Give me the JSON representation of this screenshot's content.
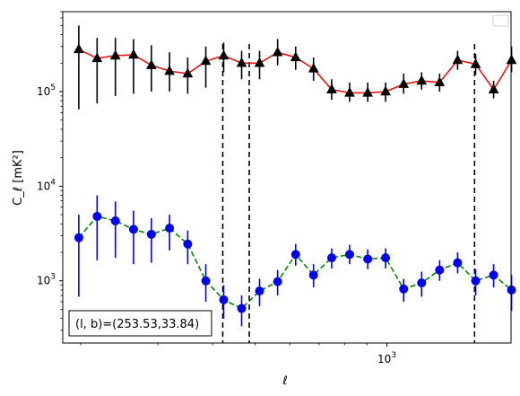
{
  "chart_data": {
    "type": "scatter",
    "title": "",
    "xlabel": "ℓ",
    "ylabel": "C_ℓ [mK²]",
    "xscale": "log",
    "yscale": "log",
    "xlim": [
      182,
      1920
    ],
    "ylim": [
      220,
      700000
    ],
    "grid": false,
    "legend": {
      "placement": "top-right",
      "entries": []
    },
    "x_ticks": [
      {
        "value": 1000,
        "base": "10",
        "exp": "3"
      }
    ],
    "y_ticks": [
      {
        "value": 1000,
        "base": "10",
        "exp": "3"
      },
      {
        "value": 10000,
        "base": "10",
        "exp": "4"
      },
      {
        "value": 100000,
        "base": "10",
        "exp": "5"
      }
    ],
    "vlines": [
      422,
      485,
      1585
    ],
    "annotation": "(l, b)=(253.53,33.84)",
    "series": [
      {
        "marker": "triangle",
        "line_style": "solid",
        "marker_color": "#000000",
        "line_color": "#ee1111",
        "points": [
          {
            "x": 198,
            "y": 280000,
            "lo": 65000,
            "hi": 500000
          },
          {
            "x": 218,
            "y": 225000,
            "lo": 75000,
            "hi": 370000
          },
          {
            "x": 240,
            "y": 240000,
            "lo": 90000,
            "hi": 370000
          },
          {
            "x": 264,
            "y": 245000,
            "lo": 95000,
            "hi": 360000
          },
          {
            "x": 290,
            "y": 190000,
            "lo": 100000,
            "hi": 310000
          },
          {
            "x": 319,
            "y": 165000,
            "lo": 100000,
            "hi": 260000
          },
          {
            "x": 351,
            "y": 155000,
            "lo": 95000,
            "hi": 230000
          },
          {
            "x": 386,
            "y": 210000,
            "lo": 110000,
            "hi": 300000
          },
          {
            "x": 424,
            "y": 240000,
            "lo": 160000,
            "hi": 330000
          },
          {
            "x": 466,
            "y": 200000,
            "lo": 135000,
            "hi": 270000
          },
          {
            "x": 512,
            "y": 200000,
            "lo": 135000,
            "hi": 270000
          },
          {
            "x": 563,
            "y": 260000,
            "lo": 190000,
            "hi": 360000
          },
          {
            "x": 619,
            "y": 230000,
            "lo": 170000,
            "hi": 300000
          },
          {
            "x": 680,
            "y": 175000,
            "lo": 130000,
            "hi": 230000
          },
          {
            "x": 748,
            "y": 105000,
            "lo": 82000,
            "hi": 135000
          },
          {
            "x": 822,
            "y": 97000,
            "lo": 78000,
            "hi": 125000
          },
          {
            "x": 904,
            "y": 97000,
            "lo": 78000,
            "hi": 125000
          },
          {
            "x": 993,
            "y": 100000,
            "lo": 78000,
            "hi": 125000
          },
          {
            "x": 1092,
            "y": 120000,
            "lo": 95000,
            "hi": 155000
          },
          {
            "x": 1200,
            "y": 130000,
            "lo": 105000,
            "hi": 160000
          },
          {
            "x": 1319,
            "y": 125000,
            "lo": 100000,
            "hi": 155000
          },
          {
            "x": 1450,
            "y": 215000,
            "lo": 170000,
            "hi": 270000
          },
          {
            "x": 1594,
            "y": 195000,
            "lo": 150000,
            "hi": 250000
          },
          {
            "x": 1752,
            "y": 105000,
            "lo": 85000,
            "hi": 130000
          },
          {
            "x": 1925,
            "y": 215000,
            "lo": 160000,
            "hi": 300000
          }
        ]
      },
      {
        "marker": "circle",
        "line_style": "dashed",
        "marker_color": "#0000ee",
        "line_color": "#008800",
        "points": [
          {
            "x": 198,
            "y": 2850,
            "lo": 680,
            "hi": 5000
          },
          {
            "x": 218,
            "y": 4800,
            "lo": 1650,
            "hi": 8000
          },
          {
            "x": 240,
            "y": 4300,
            "lo": 1750,
            "hi": 6900
          },
          {
            "x": 264,
            "y": 3500,
            "lo": 1500,
            "hi": 5500
          },
          {
            "x": 290,
            "y": 3100,
            "lo": 1550,
            "hi": 4600
          },
          {
            "x": 319,
            "y": 3600,
            "lo": 2100,
            "hi": 5000
          },
          {
            "x": 351,
            "y": 2450,
            "lo": 1500,
            "hi": 3400
          },
          {
            "x": 386,
            "y": 1000,
            "lo": 600,
            "hi": 1500
          },
          {
            "x": 424,
            "y": 630,
            "lo": 400,
            "hi": 900
          },
          {
            "x": 466,
            "y": 510,
            "lo": 330,
            "hi": 700
          },
          {
            "x": 512,
            "y": 780,
            "lo": 540,
            "hi": 1050
          },
          {
            "x": 563,
            "y": 980,
            "lo": 700,
            "hi": 1300
          },
          {
            "x": 619,
            "y": 1900,
            "lo": 1450,
            "hi": 2450
          },
          {
            "x": 680,
            "y": 1150,
            "lo": 850,
            "hi": 1500
          },
          {
            "x": 748,
            "y": 1750,
            "lo": 1350,
            "hi": 2200
          },
          {
            "x": 822,
            "y": 1900,
            "lo": 1500,
            "hi": 2400
          },
          {
            "x": 904,
            "y": 1700,
            "lo": 1330,
            "hi": 2150
          },
          {
            "x": 993,
            "y": 1750,
            "lo": 1350,
            "hi": 2200
          },
          {
            "x": 1092,
            "y": 820,
            "lo": 600,
            "hi": 1050
          },
          {
            "x": 1200,
            "y": 950,
            "lo": 680,
            "hi": 1250
          },
          {
            "x": 1319,
            "y": 1300,
            "lo": 1000,
            "hi": 1650
          },
          {
            "x": 1450,
            "y": 1550,
            "lo": 1200,
            "hi": 2000
          },
          {
            "x": 1594,
            "y": 1000,
            "lo": 700,
            "hi": 1330
          },
          {
            "x": 1752,
            "y": 1150,
            "lo": 850,
            "hi": 1500
          },
          {
            "x": 1925,
            "y": 800,
            "lo": 480,
            "hi": 1150
          }
        ]
      }
    ]
  }
}
